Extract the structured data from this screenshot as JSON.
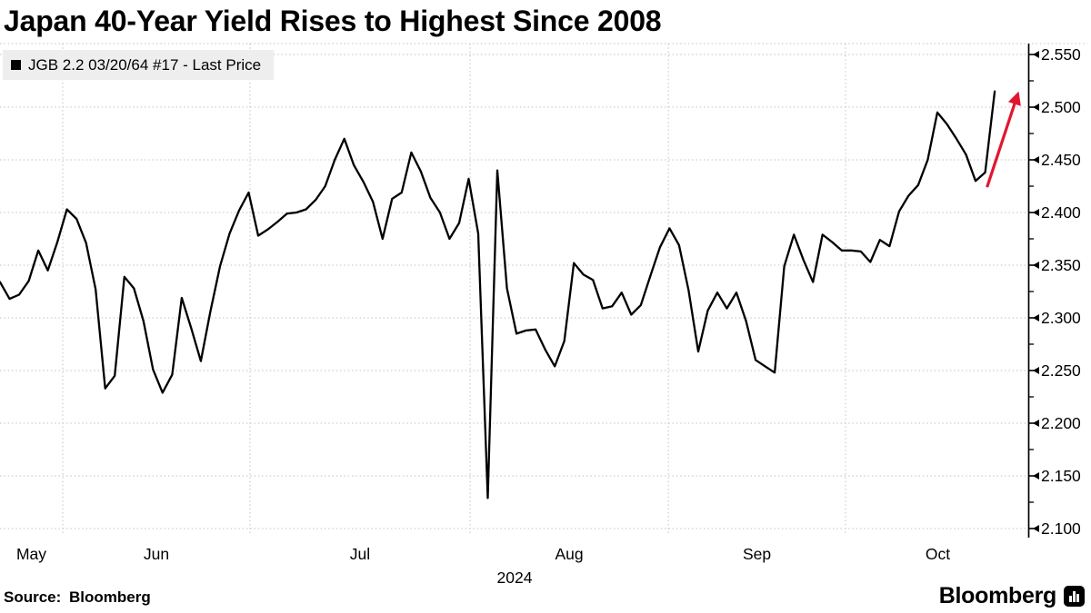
{
  "title": "Japan 40-Year Yield Rises to Highest Since 2008",
  "legend": {
    "label": "JGB 2.2 03/20/64 #17 - Last Price",
    "marker_color": "#000000"
  },
  "source": "Source: Bloomberg",
  "branding": {
    "logo_text": "Bloomberg",
    "logo_icon": "bloomberg-bars-icon"
  },
  "chart_data": {
    "type": "line",
    "title": "Japan 40-Year Yield Rises to Highest Since 2008",
    "grid": "dotted",
    "grid_color": "#c2c2c2",
    "line_color": "#000000",
    "y_axis": {
      "side": "right",
      "min": 2.1,
      "max": 2.55,
      "major_step": 0.05,
      "minor_step": 0.025,
      "tick_labels": [
        "2.550",
        "2.500",
        "2.450",
        "2.400",
        "2.350",
        "2.300",
        "2.250",
        "2.200",
        "2.150",
        "2.100"
      ]
    },
    "x_axis": {
      "months": [
        "May",
        "Jun",
        "Jul",
        "Aug",
        "Sep",
        "Oct"
      ],
      "year": "2024",
      "x_index_max": 107.7,
      "month_boundaries_idx": [
        6.56,
        26.14,
        49.15,
        69.88,
        88.41
      ],
      "month_label_centers_idx": [
        3.28,
        16.35,
        37.64,
        59.51,
        79.14,
        98.05
      ]
    },
    "series": [
      {
        "name": "JGB 2.2 03/20/64 #17 - Last Price",
        "color": "#000000",
        "points": [
          [
            "2024-05-23",
            2.334
          ],
          [
            "2024-05-24",
            2.318
          ],
          [
            "2024-05-27",
            2.322
          ],
          [
            "2024-05-28",
            2.335
          ],
          [
            "2024-05-29",
            2.364
          ],
          [
            "2024-05-30",
            2.345
          ],
          [
            "2024-05-31",
            2.372
          ],
          [
            "2024-06-03",
            2.403
          ],
          [
            "2024-06-04",
            2.394
          ],
          [
            "2024-06-05",
            2.371
          ],
          [
            "2024-06-06",
            2.327
          ],
          [
            "2024-06-07",
            2.233
          ],
          [
            "2024-06-10",
            2.245
          ],
          [
            "2024-06-11",
            2.339
          ],
          [
            "2024-06-12",
            2.328
          ],
          [
            "2024-06-13",
            2.297
          ],
          [
            "2024-06-14",
            2.251
          ],
          [
            "2024-06-17",
            2.229
          ],
          [
            "2024-06-18",
            2.246
          ],
          [
            "2024-06-19",
            2.319
          ],
          [
            "2024-06-20",
            2.29
          ],
          [
            "2024-06-21",
            2.259
          ],
          [
            "2024-06-24",
            2.306
          ],
          [
            "2024-06-25",
            2.349
          ],
          [
            "2024-06-26",
            2.38
          ],
          [
            "2024-06-27",
            2.402
          ],
          [
            "2024-06-28",
            2.419
          ],
          [
            "2024-07-01",
            2.378
          ],
          [
            "2024-07-02",
            2.384
          ],
          [
            "2024-07-03",
            2.391
          ],
          [
            "2024-07-04",
            2.399
          ],
          [
            "2024-07-05",
            2.4
          ],
          [
            "2024-07-08",
            2.403
          ],
          [
            "2024-07-09",
            2.412
          ],
          [
            "2024-07-10",
            2.425
          ],
          [
            "2024-07-11",
            2.45
          ],
          [
            "2024-07-12",
            2.47
          ],
          [
            "2024-07-16",
            2.445
          ],
          [
            "2024-07-17",
            2.429
          ],
          [
            "2024-07-18",
            2.41
          ],
          [
            "2024-07-19",
            2.375
          ],
          [
            "2024-07-22",
            2.413
          ],
          [
            "2024-07-23",
            2.419
          ],
          [
            "2024-07-24",
            2.457
          ],
          [
            "2024-07-25",
            2.439
          ],
          [
            "2024-07-26",
            2.414
          ],
          [
            "2024-07-29",
            2.4
          ],
          [
            "2024-07-30",
            2.375
          ],
          [
            "2024-07-31",
            2.39
          ],
          [
            "2024-08-01",
            2.432
          ],
          [
            "2024-08-02",
            2.38
          ],
          [
            "2024-08-05",
            2.129
          ],
          [
            "2024-08-06",
            2.44
          ],
          [
            "2024-08-07",
            2.328
          ],
          [
            "2024-08-08",
            2.285
          ],
          [
            "2024-08-09",
            2.288
          ],
          [
            "2024-08-13",
            2.289
          ],
          [
            "2024-08-14",
            2.27
          ],
          [
            "2024-08-15",
            2.254
          ],
          [
            "2024-08-16",
            2.278
          ],
          [
            "2024-08-19",
            2.352
          ],
          [
            "2024-08-20",
            2.341
          ],
          [
            "2024-08-21",
            2.336
          ],
          [
            "2024-08-22",
            2.309
          ],
          [
            "2024-08-23",
            2.311
          ],
          [
            "2024-08-26",
            2.324
          ],
          [
            "2024-08-27",
            2.303
          ],
          [
            "2024-08-28",
            2.312
          ],
          [
            "2024-08-29",
            2.34
          ],
          [
            "2024-08-30",
            2.367
          ],
          [
            "2024-09-02",
            2.385
          ],
          [
            "2024-09-03",
            2.369
          ],
          [
            "2024-09-04",
            2.326
          ],
          [
            "2024-09-05",
            2.268
          ],
          [
            "2024-09-06",
            2.307
          ],
          [
            "2024-09-09",
            2.324
          ],
          [
            "2024-09-10",
            2.309
          ],
          [
            "2024-09-11",
            2.324
          ],
          [
            "2024-09-12",
            2.297
          ],
          [
            "2024-09-13",
            2.26
          ],
          [
            "2024-09-17",
            2.254
          ],
          [
            "2024-09-18",
            2.248
          ],
          [
            "2024-09-19",
            2.349
          ],
          [
            "2024-09-20",
            2.379
          ],
          [
            "2024-09-24",
            2.355
          ],
          [
            "2024-09-25",
            2.334
          ],
          [
            "2024-09-26",
            2.379
          ],
          [
            "2024-09-27",
            2.372
          ],
          [
            "2024-09-30",
            2.364
          ],
          [
            "2024-10-01",
            2.364
          ],
          [
            "2024-10-02",
            2.363
          ],
          [
            "2024-10-03",
            2.353
          ],
          [
            "2024-10-04",
            2.374
          ],
          [
            "2024-10-07",
            2.368
          ],
          [
            "2024-10-08",
            2.401
          ],
          [
            "2024-10-09",
            2.416
          ],
          [
            "2024-10-10",
            2.426
          ],
          [
            "2024-10-11",
            2.45
          ],
          [
            "2024-10-15",
            2.495
          ],
          [
            "2024-10-16",
            2.484
          ],
          [
            "2024-10-17",
            2.47
          ],
          [
            "2024-10-18",
            2.455
          ],
          [
            "2024-10-21",
            2.43
          ],
          [
            "2024-10-22",
            2.438
          ],
          [
            "2024-10-23",
            2.515
          ]
        ]
      }
    ],
    "annotations": [
      {
        "type": "arrow",
        "color": "#e0162f",
        "from": {
          "idx": 103.2,
          "value": 2.424
        },
        "to": {
          "idx": 106.4,
          "value": 2.512
        }
      }
    ]
  }
}
